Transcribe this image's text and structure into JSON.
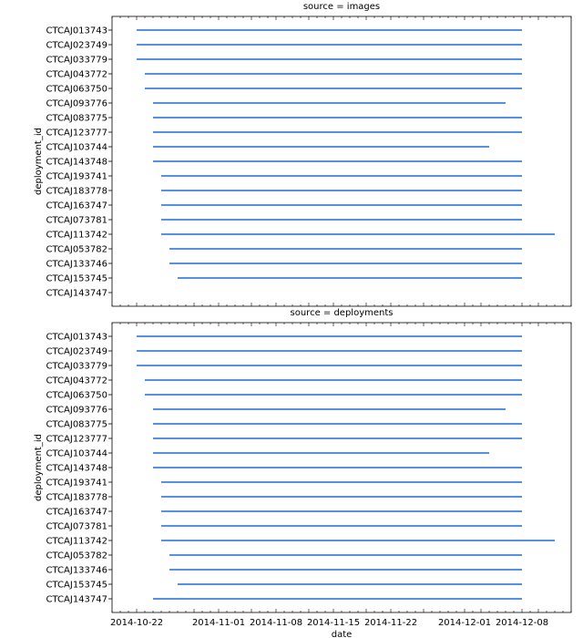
{
  "chart_data": {
    "type": "timeline",
    "x_label": "date",
    "y_label": "deployment_id",
    "x_ticks": [
      "2014-10-22",
      "2014-11-01",
      "2014-11-08",
      "2014-11-15",
      "2014-11-22",
      "2014-12-01",
      "2014-12-08"
    ],
    "x_range": [
      "2014-10-19",
      "2014-12-14"
    ],
    "line_color": "#1f6fdc",
    "panels": [
      {
        "title": "source = images",
        "rows": [
          {
            "id": "CTCAJ013743",
            "start": "2014-10-22",
            "end": "2014-12-08"
          },
          {
            "id": "CTCAJ023749",
            "start": "2014-10-22",
            "end": "2014-12-08"
          },
          {
            "id": "CTCAJ033779",
            "start": "2014-10-22",
            "end": "2014-12-08"
          },
          {
            "id": "CTCAJ043772",
            "start": "2014-10-23",
            "end": "2014-12-08"
          },
          {
            "id": "CTCAJ063750",
            "start": "2014-10-23",
            "end": "2014-12-08"
          },
          {
            "id": "CTCAJ093776",
            "start": "2014-10-24",
            "end": "2014-12-06"
          },
          {
            "id": "CTCAJ083775",
            "start": "2014-10-24",
            "end": "2014-12-08"
          },
          {
            "id": "CTCAJ123777",
            "start": "2014-10-24",
            "end": "2014-12-08"
          },
          {
            "id": "CTCAJ103744",
            "start": "2014-10-24",
            "end": "2014-12-04"
          },
          {
            "id": "CTCAJ143748",
            "start": "2014-10-24",
            "end": "2014-12-08"
          },
          {
            "id": "CTCAJ193741",
            "start": "2014-10-25",
            "end": "2014-12-08"
          },
          {
            "id": "CTCAJ183778",
            "start": "2014-10-25",
            "end": "2014-12-08"
          },
          {
            "id": "CTCAJ163747",
            "start": "2014-10-25",
            "end": "2014-12-08"
          },
          {
            "id": "CTCAJ073781",
            "start": "2014-10-25",
            "end": "2014-12-08"
          },
          {
            "id": "CTCAJ113742",
            "start": "2014-10-25",
            "end": "2014-12-12"
          },
          {
            "id": "CTCAJ053782",
            "start": "2014-10-26",
            "end": "2014-12-08"
          },
          {
            "id": "CTCAJ133746",
            "start": "2014-10-26",
            "end": "2014-12-08"
          },
          {
            "id": "CTCAJ153745",
            "start": "2014-10-27",
            "end": "2014-12-08"
          },
          {
            "id": "CTCAJ143747",
            "start": null,
            "end": null
          }
        ]
      },
      {
        "title": "source = deployments",
        "rows": [
          {
            "id": "CTCAJ013743",
            "start": "2014-10-22",
            "end": "2014-12-08"
          },
          {
            "id": "CTCAJ023749",
            "start": "2014-10-22",
            "end": "2014-12-08"
          },
          {
            "id": "CTCAJ033779",
            "start": "2014-10-22",
            "end": "2014-12-08"
          },
          {
            "id": "CTCAJ043772",
            "start": "2014-10-23",
            "end": "2014-12-08"
          },
          {
            "id": "CTCAJ063750",
            "start": "2014-10-23",
            "end": "2014-12-08"
          },
          {
            "id": "CTCAJ093776",
            "start": "2014-10-24",
            "end": "2014-12-06"
          },
          {
            "id": "CTCAJ083775",
            "start": "2014-10-24",
            "end": "2014-12-08"
          },
          {
            "id": "CTCAJ123777",
            "start": "2014-10-24",
            "end": "2014-12-08"
          },
          {
            "id": "CTCAJ103744",
            "start": "2014-10-24",
            "end": "2014-12-04"
          },
          {
            "id": "CTCAJ143748",
            "start": "2014-10-24",
            "end": "2014-12-08"
          },
          {
            "id": "CTCAJ193741",
            "start": "2014-10-25",
            "end": "2014-12-08"
          },
          {
            "id": "CTCAJ183778",
            "start": "2014-10-25",
            "end": "2014-12-08"
          },
          {
            "id": "CTCAJ163747",
            "start": "2014-10-25",
            "end": "2014-12-08"
          },
          {
            "id": "CTCAJ073781",
            "start": "2014-10-25",
            "end": "2014-12-08"
          },
          {
            "id": "CTCAJ113742",
            "start": "2014-10-25",
            "end": "2014-12-12"
          },
          {
            "id": "CTCAJ053782",
            "start": "2014-10-26",
            "end": "2014-12-08"
          },
          {
            "id": "CTCAJ133746",
            "start": "2014-10-26",
            "end": "2014-12-08"
          },
          {
            "id": "CTCAJ153745",
            "start": "2014-10-27",
            "end": "2014-12-08"
          },
          {
            "id": "CTCAJ143747",
            "start": "2014-10-24",
            "end": "2014-12-08"
          }
        ]
      }
    ]
  }
}
